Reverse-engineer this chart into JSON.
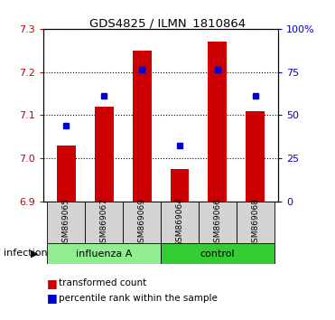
{
  "title": "GDS4825 / ILMN_1810864",
  "samples": [
    "GSM869065",
    "GSM869067",
    "GSM869069",
    "GSM869064",
    "GSM869066",
    "GSM869068"
  ],
  "bar_values": [
    7.03,
    7.12,
    7.25,
    6.975,
    7.27,
    7.11
  ],
  "dot_values": [
    7.075,
    7.145,
    7.205,
    7.03,
    7.205,
    7.145
  ],
  "ylim_left": [
    6.9,
    7.3
  ],
  "ylim_right": [
    0,
    100
  ],
  "yticks_left": [
    6.9,
    7.0,
    7.1,
    7.2,
    7.3
  ],
  "yticks_right": [
    0,
    25,
    50,
    75,
    100
  ],
  "bar_color": "#CC0000",
  "dot_color": "#0000CC",
  "bar_bottom": 6.9,
  "background_color": "#ffffff",
  "label_area_color": "#d3d3d3",
  "infection_label": "infection",
  "legend_bar_label": "transformed count",
  "legend_dot_label": "percentile rank within the sample",
  "groups_info": [
    {
      "label": "influenza A",
      "start": 0,
      "end": 2,
      "color": "#90EE90"
    },
    {
      "label": "control",
      "start": 3,
      "end": 5,
      "color": "#33CC33"
    }
  ]
}
